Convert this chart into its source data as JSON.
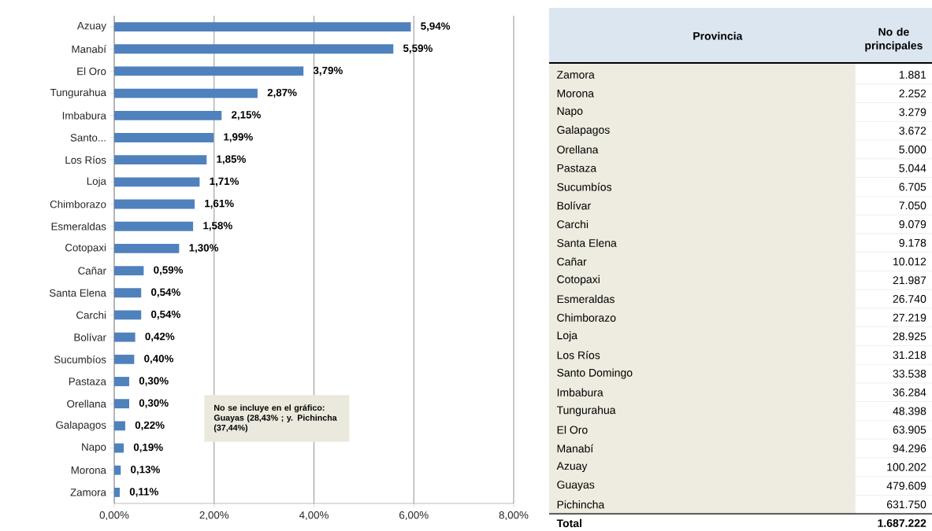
{
  "chart_data": [
    {
      "type": "bar",
      "orientation": "horizontal",
      "color": "#4f81bd",
      "grid": "x",
      "categories": [
        "Azuay",
        "Manabí",
        "El Oro",
        "Tungurahua",
        "Imbabura",
        "Santo...",
        "Los Ríos",
        "Loja",
        "Chimborazo",
        "Esmeraldas",
        "Cotopaxi",
        "Cañar",
        "Santa Elena",
        "Carchi",
        "Bolívar",
        "Sucumbíos",
        "Pastaza",
        "Orellana",
        "Galapagos",
        "Napo",
        "Morona",
        "Zamora"
      ],
      "values": [
        5.94,
        5.59,
        3.79,
        2.87,
        2.15,
        1.99,
        1.85,
        1.71,
        1.61,
        1.58,
        1.3,
        0.59,
        0.54,
        0.54,
        0.42,
        0.4,
        0.3,
        0.3,
        0.22,
        0.19,
        0.13,
        0.11
      ],
      "value_labels": [
        "5,94%",
        "5,59%",
        "3,79%",
        "2,87%",
        "2,15%",
        "1,99%",
        "1,85%",
        "1,71%",
        "1,61%",
        "1,58%",
        "1,30%",
        "0,59%",
        "0,54%",
        "0,54%",
        "0,42%",
        "0,40%",
        "0,30%",
        "0,30%",
        "0,22%",
        "0,19%",
        "0,13%",
        "0,11%"
      ],
      "xlim": [
        0,
        8
      ],
      "xticks": [
        {
          "value": 0,
          "label": "0,00%"
        },
        {
          "value": 2,
          "label": "2,00%"
        },
        {
          "value": 4,
          "label": "4,00%"
        },
        {
          "value": 6,
          "label": "6,00%"
        },
        {
          "value": 8,
          "label": "8,00%"
        }
      ],
      "annotations": [
        "No se incluye en el gráfico: Guayas (28,43% ; y. Pichincha (37,44%)"
      ]
    },
    {
      "type": "other",
      "xlabel": "Provincia",
      "ylabel": "No de principales",
      "categories": [
        "Zamora",
        "Morona",
        "Napo",
        "Galapagos",
        "Orellana",
        "Pastaza",
        "Sucumbíos",
        "Bolívar",
        "Carchi",
        "Santa Elena",
        "Cañar",
        "Cotopaxi",
        "Esmeraldas",
        "Chimborazo",
        "Loja",
        "Los Ríos",
        "Santo Domingo",
        "Imbabura",
        "Tungurahua",
        "El Oro",
        "Manabí",
        "Azuay",
        "Guayas",
        "Pichincha",
        "Total"
      ],
      "value_labels": [
        "1.881",
        "2.252",
        "3.279",
        "3.672",
        "5.000",
        "5.044",
        "6.705",
        "7.050",
        "9.079",
        "9.178",
        "10.012",
        "21.987",
        "26.740",
        "27.219",
        "28.925",
        "31.218",
        "33.538",
        "36.284",
        "48.398",
        "63.905",
        "94.296",
        "100.202",
        "479.609",
        "631.750",
        "1.687.222"
      ]
    }
  ]
}
